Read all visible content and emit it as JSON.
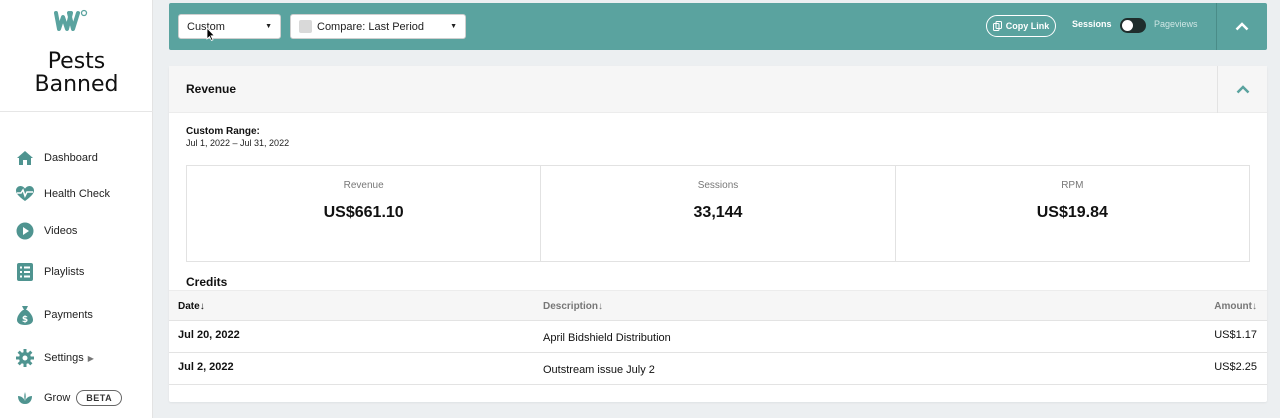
{
  "sidebar": {
    "brand": [
      "Pests",
      "Banned"
    ],
    "items": [
      {
        "label": "Dashboard",
        "icon": "home-icon"
      },
      {
        "label": "Health Check",
        "icon": "heart-pulse-icon"
      },
      {
        "label": "Videos",
        "icon": "play-circle-icon"
      },
      {
        "label": "Playlists",
        "icon": "playlist-icon"
      },
      {
        "label": "Payments",
        "icon": "money-bag-icon"
      },
      {
        "label": "Settings",
        "icon": "gear-icon"
      },
      {
        "label": "Grow",
        "icon": "leaf-icon",
        "badge": "BETA"
      }
    ]
  },
  "toolbar": {
    "date_select": "Custom",
    "compare_select": "Compare: Last Period",
    "copy_link": "Copy Link",
    "toggle_on_label": "Sessions",
    "toggle_off_label": "Pageviews"
  },
  "revenue": {
    "title": "Revenue",
    "range_label": "Custom Range:",
    "range_value": "Jul 1, 2022 – Jul 31, 2022",
    "stats": [
      {
        "label": "Revenue",
        "value": "US$661.10"
      },
      {
        "label": "Sessions",
        "value": "33,144"
      },
      {
        "label": "RPM",
        "value": "US$19.84"
      }
    ]
  },
  "credits": {
    "title": "Credits",
    "columns": [
      "Date",
      "Description",
      "Amount"
    ],
    "rows": [
      {
        "date": "Jul 20, 2022",
        "description": "April Bidshield Distribution",
        "amount": "US$1.17"
      },
      {
        "date": "Jul 2, 2022",
        "description": "Outstream issue July 2",
        "amount": "US$2.25"
      }
    ]
  },
  "colors": {
    "accent": "#5aa39f",
    "accent_dark": "#4f9490"
  }
}
